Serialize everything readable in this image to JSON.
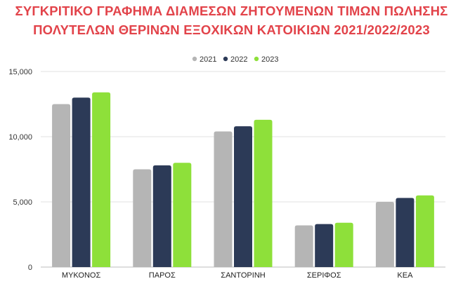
{
  "chart_data": {
    "type": "bar",
    "title": [
      "ΣΥΓΚΡΙΤΙΚΟ ΓΡΑΦΗΜΑ ΔΙΑΜΕΣΩΝ ΖΗΤΟΥΜΕΝΩΝ ΤΙΜΩΝ ΠΩΛΗΣΗΣ",
      "ΠΟΛΥΤΕΛΩΝ ΘΕΡΙΝΩΝ ΕΞΟΧΙΚΩΝ ΚΑΤΟΙΚΙΩΝ 2021/2022/2023"
    ],
    "categories": [
      "ΜΥΚΟΝΟΣ",
      "ΠΑΡΟΣ",
      "ΣΑΝΤΟΡΙΝΗ",
      "ΣΕΡΙΦΟΣ",
      "ΚΕΑ"
    ],
    "series": [
      {
        "name": "2021",
        "color": "#b5b5b5",
        "values": [
          12500,
          7500,
          10400,
          3200,
          5000
        ]
      },
      {
        "name": "2022",
        "color": "#2c3a57",
        "values": [
          13000,
          7800,
          10800,
          3300,
          5300
        ]
      },
      {
        "name": "2023",
        "color": "#8ee03a",
        "values": [
          13400,
          8000,
          11300,
          3400,
          5500
        ]
      }
    ],
    "ylim": [
      0,
      15000
    ],
    "yticks": [
      "0",
      "5,000",
      "10,000",
      "15,000"
    ],
    "grid": true,
    "legend": "top-center"
  }
}
